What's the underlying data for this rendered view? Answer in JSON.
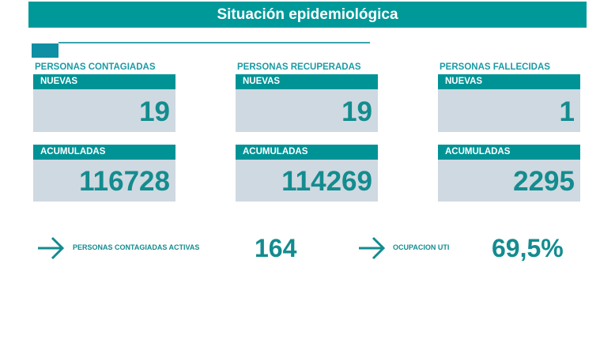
{
  "title": "Situación epidemiológica",
  "columns": [
    {
      "label": "PERSONAS CONTAGIADAS",
      "new_label": "NUEVAS",
      "new": "19",
      "acc_label": "ACUMULADAS",
      "acc": "116728"
    },
    {
      "label": "PERSONAS RECUPERADAS",
      "new_label": "NUEVAS",
      "new": "19",
      "acc_label": "ACUMULADAS",
      "acc": "114269"
    },
    {
      "label": "PERSONAS FALLECIDAS",
      "new_label": "NUEVAS",
      "new": "1",
      "acc_label": "ACUMULADAS",
      "acc": "2295"
    }
  ],
  "active": {
    "label": "PERSONAS CONTAGIADAS ACTIVAS",
    "value": "164",
    "icon": "arrow-right-icon"
  },
  "uti": {
    "label": "OCUPACION UTI",
    "value": "69,5%",
    "icon": "arrow-right-icon"
  },
  "colors": {
    "primary": "#00999a",
    "panel": "#cfd9e1"
  }
}
